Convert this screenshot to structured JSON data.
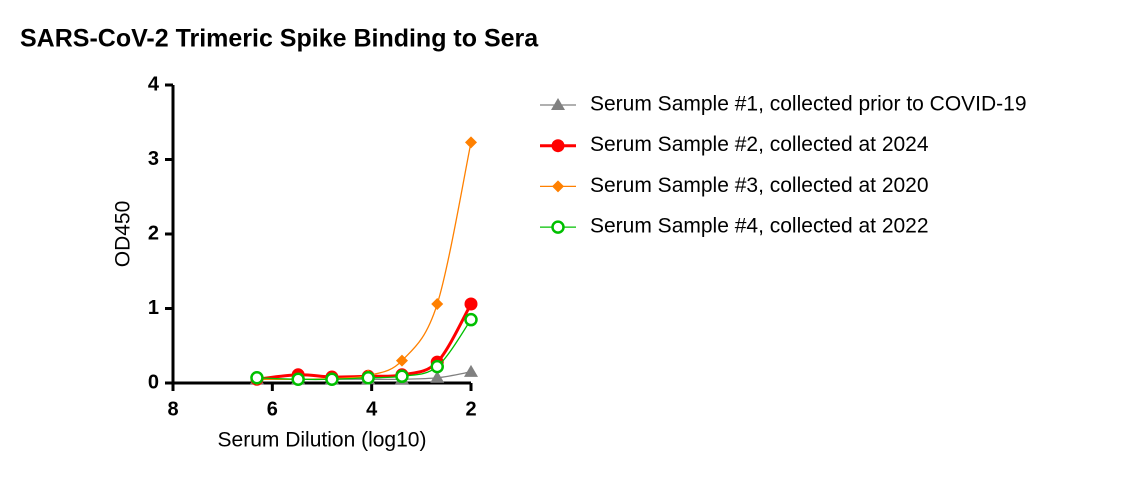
{
  "chart_data": {
    "type": "line",
    "title": "SARS-CoV-2 Trimeric Spike Binding to Sera",
    "x_label": "Serum Dilution (log10)",
    "y_label": "OD450",
    "x": [
      6.31,
      5.48,
      4.8,
      4.07,
      3.39,
      2.68,
      2.0
    ],
    "xlim": [
      8,
      2
    ],
    "xticks": [
      8,
      6,
      4,
      2
    ],
    "ylim": [
      0,
      4
    ],
    "yticks": [
      0,
      1,
      2,
      3,
      4
    ],
    "legend": "right",
    "series": [
      {
        "name": "Serum Sample #1, collected prior to COVID-19",
        "color": "#808080",
        "marker": "triangle",
        "values": [
          0.05,
          0.05,
          0.05,
          0.05,
          0.05,
          0.07,
          0.15
        ]
      },
      {
        "name": "Serum Sample #2, collected at 2024",
        "color": "#ff0000",
        "marker": "circle",
        "values": [
          0.05,
          0.11,
          0.08,
          0.09,
          0.11,
          0.28,
          1.06
        ]
      },
      {
        "name": "Serum Sample #3, collected at 2020",
        "color": "#ff8000",
        "marker": "diamond",
        "values": [
          0.05,
          0.05,
          0.06,
          0.1,
          0.3,
          1.06,
          3.23
        ]
      },
      {
        "name": "Serum Sample #4, collected at 2022",
        "color": "#00c000",
        "marker": "open-circle",
        "values": [
          0.07,
          0.05,
          0.05,
          0.07,
          0.09,
          0.22,
          0.85
        ]
      }
    ]
  }
}
